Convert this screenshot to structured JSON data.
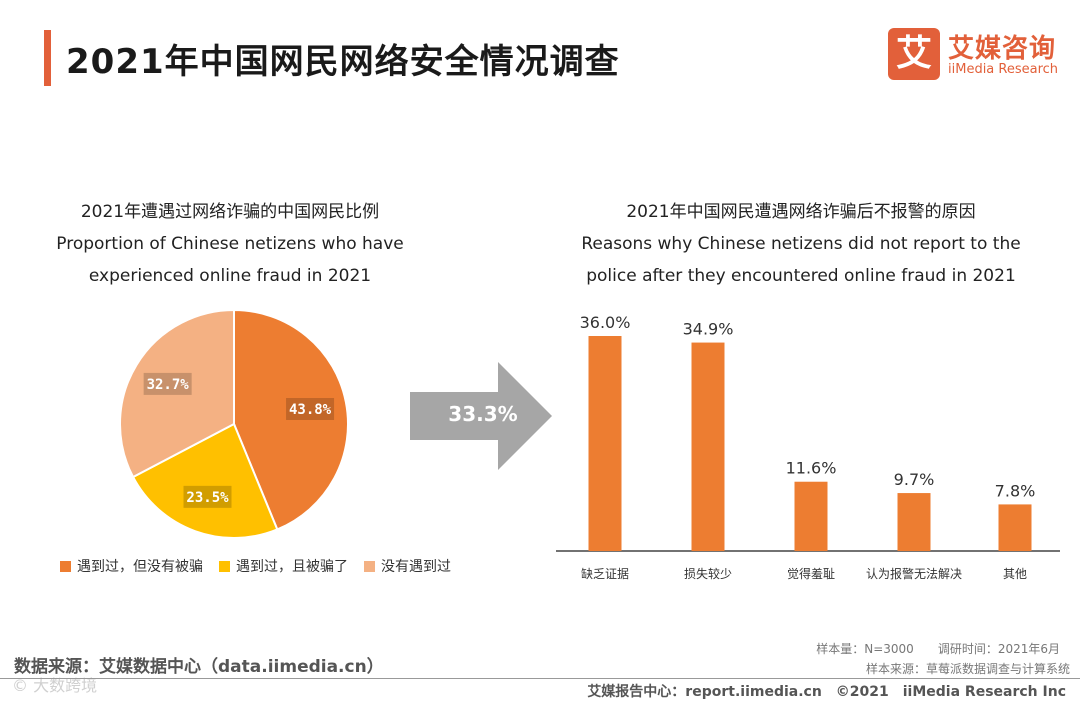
{
  "header": {
    "title": "2021年中国网民网络安全情况调查",
    "logo_mark": "艾",
    "logo_cn": "艾媒咨询",
    "logo_en": "iiMedia Research"
  },
  "left_chart": {
    "title_cn": "2021年遭遇过网络诈骗的中国网民比例",
    "title_en_line1": "Proportion of Chinese netizens who have",
    "title_en_line2": "experienced online fraud in 2021"
  },
  "right_chart": {
    "title_cn": "2021年中国网民遭遇网络诈骗后不报警的原因",
    "title_en_line1": "Reasons why Chinese netizens did not report to the",
    "title_en_line2": "police after they encountered online fraud in 2021"
  },
  "arrow": {
    "label": "33.3%"
  },
  "chart_data": [
    {
      "type": "pie",
      "title": "2021年遭遇过网络诈骗的中国网民比例",
      "slices": [
        {
          "label": "遇到过，但没有被骗",
          "value": 43.8,
          "display": "43.8%",
          "color": "#ed7d31"
        },
        {
          "label": "遇到过，且被骗了",
          "value": 23.5,
          "display": "23.5%",
          "color": "#ffc000"
        },
        {
          "label": "没有遇到过",
          "value": 32.7,
          "display": "32.7%",
          "color": "#f4b183"
        }
      ]
    },
    {
      "type": "bar",
      "title": "2021年中国网民遭遇网络诈骗后不报警的原因",
      "categories": [
        "缺乏证据",
        "损失较少",
        "觉得羞耻",
        "认为报警无法解决",
        "其他"
      ],
      "values": [
        36.0,
        34.9,
        11.6,
        9.7,
        7.8
      ],
      "value_labels": [
        "36.0%",
        "34.9%",
        "11.6%",
        "9.7%",
        "7.8%"
      ],
      "ylim": [
        0,
        40
      ],
      "color": "#ed7d31"
    }
  ],
  "footer": {
    "source": "数据来源：艾媒数据中心（data.iimedia.cn）",
    "watermark": "© 大数跨境",
    "sample": "样本量：N=3000　　调研时间：2021年6月",
    "sample_source": "样本来源：草莓派数据调查与计算系统",
    "report": "艾媒报告中心：report.iimedia.cn　©2021　iiMedia Research Inc"
  }
}
